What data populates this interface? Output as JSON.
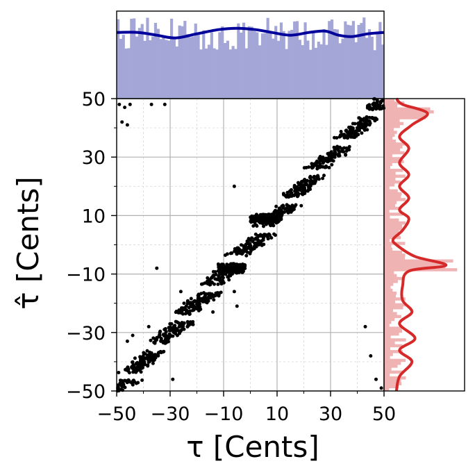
{
  "chart_data": {
    "type": "scatter",
    "title": "",
    "xlabel": "τ [Cents]",
    "ylabel": "τ̂ [Cents]",
    "xlim": [
      -50,
      50
    ],
    "ylim": [
      -50,
      50
    ],
    "xticks": [
      "−50",
      "−30",
      "−10",
      "10",
      "30",
      "50"
    ],
    "yticks": [
      "50",
      "30",
      "10",
      "−10",
      "−30",
      "−50"
    ],
    "xtick_values": [
      -50,
      -30,
      -10,
      10,
      30,
      50
    ],
    "ytick_values": [
      50,
      30,
      10,
      -10,
      -30,
      -50
    ],
    "minor_ticks": [
      -40,
      -20,
      0,
      20,
      40
    ],
    "grid": true,
    "colors": {
      "scatter": "#000000",
      "top_hist": "#a3a6d6",
      "top_kde": "#00009a",
      "right_hist": "#f0b3b3",
      "right_kde": "#d62a2a",
      "major_grid": "#b0b0b0",
      "minor_grid": "#dcdcdc"
    },
    "outlier_points": [
      [
        -49,
        48
      ],
      [
        -47,
        47
      ],
      [
        -45,
        48
      ],
      [
        -48,
        42
      ],
      [
        -46,
        41
      ],
      [
        -37,
        48
      ],
      [
        -32,
        48
      ],
      [
        -6,
        20
      ],
      [
        -35,
        -8
      ],
      [
        -29,
        -46
      ],
      [
        -44,
        -31
      ],
      [
        -46,
        -33
      ],
      [
        -38,
        -28
      ],
      [
        43,
        -28
      ],
      [
        45,
        -38
      ],
      [
        47,
        -46
      ],
      [
        49,
        -49
      ],
      [
        -8,
        -12
      ],
      [
        -6,
        -16
      ],
      [
        -14,
        -23
      ],
      [
        -5,
        -21
      ],
      [
        8,
        8
      ],
      [
        14,
        13
      ],
      [
        25,
        26
      ],
      [
        -26,
        -16
      ]
    ],
    "top_kde": [
      [
        -50,
        48
      ],
      [
        -42,
        48
      ],
      [
        -35,
        46
      ],
      [
        -28,
        44
      ],
      [
        -20,
        47
      ],
      [
        -12,
        50
      ],
      [
        -5,
        51
      ],
      [
        2,
        50
      ],
      [
        8,
        48
      ],
      [
        15,
        46
      ],
      [
        22,
        48
      ],
      [
        28,
        49
      ],
      [
        33,
        46
      ],
      [
        38,
        45
      ],
      [
        44,
        47
      ],
      [
        50,
        48
      ]
    ],
    "right_kde": [
      [
        -50,
        4
      ],
      [
        -45,
        5
      ],
      [
        -40,
        9
      ],
      [
        -36,
        5
      ],
      [
        -32,
        10
      ],
      [
        -27,
        5
      ],
      [
        -23,
        9
      ],
      [
        -19,
        6
      ],
      [
        -14,
        6
      ],
      [
        -9,
        8
      ],
      [
        -7,
        20
      ],
      [
        -4,
        10
      ],
      [
        0,
        4
      ],
      [
        2,
        3
      ],
      [
        5,
        6
      ],
      [
        9,
        8
      ],
      [
        12,
        5
      ],
      [
        16,
        8
      ],
      [
        20,
        5
      ],
      [
        24,
        8
      ],
      [
        28,
        5
      ],
      [
        33,
        8
      ],
      [
        37,
        5
      ],
      [
        41,
        9
      ],
      [
        45,
        14
      ],
      [
        48,
        6
      ],
      [
        50,
        4
      ]
    ]
  }
}
